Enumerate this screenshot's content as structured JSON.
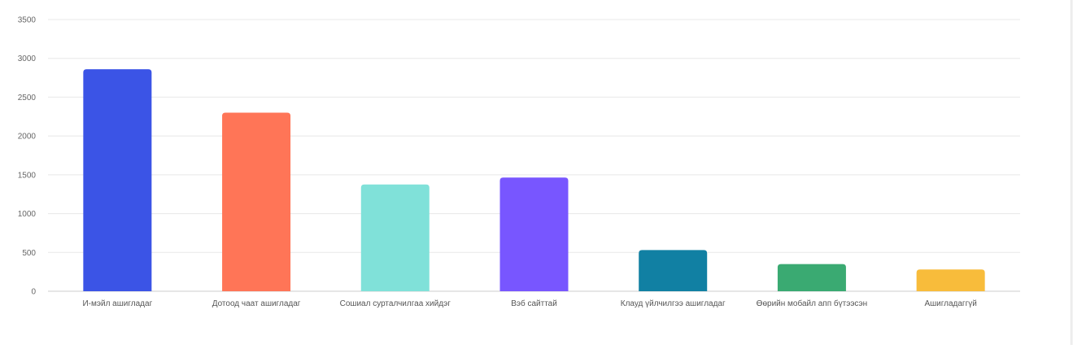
{
  "chart_data": {
    "type": "bar",
    "title": "",
    "xlabel": "",
    "ylabel": "",
    "ylim": [
      0,
      3500
    ],
    "yticks": [
      0,
      500,
      1000,
      1500,
      2000,
      2500,
      3000,
      3500
    ],
    "grid": true,
    "legend": "none",
    "categories": [
      "И-мэйл ашигладаг",
      "Дотоод чаат ашигладаг",
      "Сошиал сурталчилгаа хийдэг",
      "Вэб сайттай",
      "Клауд үйлчилгээ ашигладаг",
      "Өөрийн мобайл апп бүтээсэн",
      "Ашигладаггүй"
    ],
    "values": [
      2860,
      2300,
      1375,
      1465,
      530,
      350,
      280
    ],
    "colors": [
      "#3b54e6",
      "#ff7557",
      "#80e1d9",
      "#7856ff",
      "#1180a3",
      "#3aaa72",
      "#f8bc3b"
    ]
  }
}
